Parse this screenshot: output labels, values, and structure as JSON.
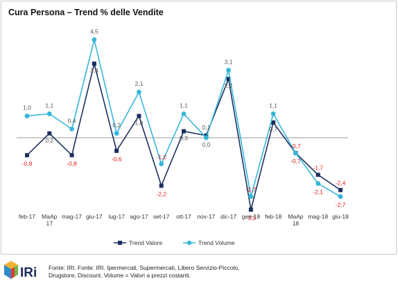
{
  "title": "Cura Persona – Trend % delle Vendite",
  "colors": {
    "valore": "#1c2f5e",
    "volume": "#35b6d9",
    "negative_label": "#e0191b",
    "positive_label": "#555555",
    "zero_line": "#9a9a9a"
  },
  "chart_data": {
    "type": "line",
    "title": "Cura Persona – Trend % delle Vendite",
    "categories": [
      "feb-17",
      "MaAp 17",
      "mag-17",
      "giu-17",
      "lug-17",
      "ago-17",
      "set-17",
      "ott-17",
      "nov-17",
      "dic-17",
      "gen-18",
      "feb-18",
      "MaAp 18",
      "mag-18",
      "giu-18"
    ],
    "tick_labels": [
      [
        "feb-17"
      ],
      [
        "MaAp",
        "17"
      ],
      [
        "mag-17"
      ],
      [
        "giu-17"
      ],
      [
        "lug-17"
      ],
      [
        "ago-17"
      ],
      [
        "set-17"
      ],
      [
        "ott-17"
      ],
      [
        "nov-17"
      ],
      [
        "dic-17"
      ],
      [
        "gen-18"
      ],
      [
        "feb-18"
      ],
      [
        "MaAp",
        "18"
      ],
      [
        "mag-18"
      ],
      [
        "giu-18"
      ]
    ],
    "series": [
      {
        "name": "Trend Valore",
        "values": [
          -0.8,
          0.2,
          -0.8,
          3.4,
          -0.6,
          1.0,
          -2.2,
          0.3,
          0.1,
          2.7,
          -3.3,
          0.7,
          -0.7,
          -1.7,
          -2.4
        ],
        "labels": [
          "-0,8",
          "0,2",
          "-0,8",
          "3,4",
          "-0,6",
          "1,0",
          "-2,2",
          "0,3",
          "0,1",
          "2,7",
          "-3,3",
          "0,7",
          "-0,7",
          "-1,7",
          "-2,4"
        ]
      },
      {
        "name": "Trend Volume",
        "values": [
          1.0,
          1.1,
          0.4,
          4.5,
          0.2,
          2.1,
          -1.2,
          1.1,
          0.0,
          3.1,
          -2.7,
          1.1,
          -0.7,
          -2.1,
          -2.7
        ],
        "labels": [
          "1,0",
          "1,1",
          "0,4",
          "4,5",
          "0,2",
          "2,1",
          "-1,2",
          "1,1",
          "0,0",
          "3,1",
          "-2,7",
          "1,1",
          "-0,7",
          "-2,1",
          "-2,7"
        ]
      }
    ],
    "ylim": [
      -3.9,
      5.4
    ],
    "grid": false,
    "legend_position": "bottom"
  },
  "footer": {
    "logo_text": "IRi",
    "source_line1": "Fonte: IRI. Fonte: IRI. Ipermercati, Supermercati, Libero Servizio-Piccolo,",
    "source_line2": "Drugstore, Discount.  Volume =  Valori a prezzi costanti."
  }
}
